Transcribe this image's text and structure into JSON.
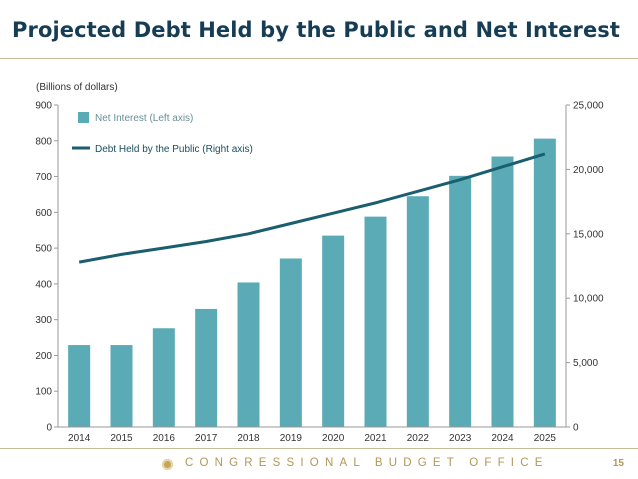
{
  "slide": {
    "title": "Projected Debt Held by the Public and Net Interest",
    "footer": "CONGRESSIONAL BUDGET OFFICE",
    "page_number": "15"
  },
  "colors": {
    "bar": "#5aabb6",
    "line": "#1a5e70",
    "axis": "#9a9a9a",
    "text": "#333333",
    "accent": "#c6bc9a"
  },
  "chart_data": {
    "type": "bar+line",
    "unit_label": "(Billions of dollars)",
    "categories": [
      "2014",
      "2015",
      "2016",
      "2017",
      "2018",
      "2019",
      "2020",
      "2021",
      "2022",
      "2023",
      "2024",
      "2025"
    ],
    "series": [
      {
        "name": "Net Interest (Left axis)",
        "type": "bar",
        "axis": "left",
        "values": [
          229,
          229,
          276,
          330,
          404,
          471,
          535,
          588,
          645,
          702,
          756,
          806
        ]
      },
      {
        "name": "Debt Held by the Public (Right axis)",
        "type": "line",
        "axis": "right",
        "values": [
          12800,
          13400,
          13900,
          14400,
          15000,
          15800,
          16600,
          17400,
          18300,
          19200,
          20200,
          21200
        ]
      }
    ],
    "left_axis": {
      "min": 0,
      "max": 900,
      "ticks": [
        "0",
        "100",
        "200",
        "300",
        "400",
        "500",
        "600",
        "700",
        "800",
        "900"
      ]
    },
    "right_axis": {
      "min": 0,
      "max": 25000,
      "ticks": [
        "0",
        "5,000",
        "10,000",
        "15,000",
        "20,000",
        "25,000"
      ]
    },
    "legend_position": "top-left"
  }
}
